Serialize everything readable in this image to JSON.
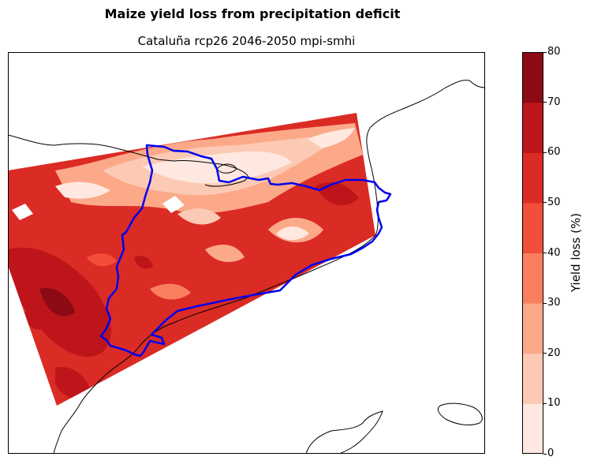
{
  "suptitle": "Maize yield loss from precipitation deficit",
  "title": "Cataluña rcp26 2046-2050 mpi-smhi",
  "colorbar": {
    "label": "Yield loss (%)",
    "ticks": [
      "0",
      "10",
      "20",
      "30",
      "40",
      "50",
      "60",
      "70",
      "80"
    ],
    "levels": [
      0,
      10,
      20,
      30,
      40,
      50,
      60,
      70,
      80
    ],
    "colors": [
      "#fee8df",
      "#fcc9b4",
      "#fca98a",
      "#fa7f5f",
      "#f24e39",
      "#db2b25",
      "#bd151a",
      "#8b0a14"
    ]
  },
  "map": {
    "region": "Cataluña",
    "boundary_color": "#0000ee",
    "coastline_color": "#000000"
  },
  "chart_data": {
    "type": "heatmap",
    "title": "Cataluña rcp26 2046-2050 mpi-smhi",
    "colorbar_label": "Yield loss (%)",
    "value_range": [
      0,
      80
    ],
    "contour_levels": [
      0,
      10,
      20,
      30,
      40,
      50,
      60,
      70,
      80
    ]
  }
}
